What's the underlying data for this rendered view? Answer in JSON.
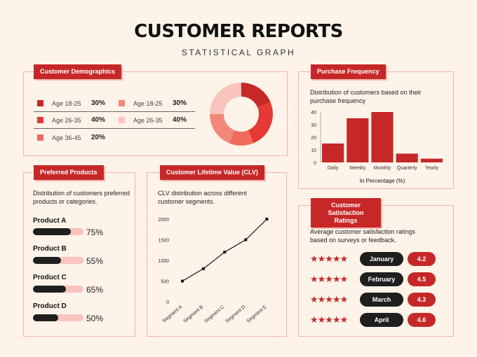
{
  "header": {
    "title": "CUSTOMER REPORTS",
    "subtitle": "STATISTICAL GRAPH"
  },
  "demographics": {
    "tag": "Customer Demographics",
    "left": [
      {
        "label": "Age 18-25",
        "pct": "30%",
        "color": "#c62828"
      },
      {
        "label": "Age 26-35",
        "pct": "40%",
        "color": "#e53935"
      },
      {
        "label": "Age 36-45",
        "pct": "20%",
        "color": "#ef6c5c"
      }
    ],
    "right": [
      {
        "label": "Age 18-25",
        "pct": "30%",
        "color": "#f2877a"
      },
      {
        "label": "Age 26-35",
        "pct": "40%",
        "color": "#f8c4bd"
      }
    ]
  },
  "purchase": {
    "tag": "Purchase Frequency",
    "desc": "Distribution of customers based on their purchase frequency",
    "xlabel": "In Percentage (%)"
  },
  "products": {
    "tag": "Preferred Products",
    "desc": "Distribution of customers preferred products or categories.",
    "items": [
      {
        "name": "Product A",
        "pct": "75%",
        "value": 0.75
      },
      {
        "name": "Product B",
        "pct": "55%",
        "value": 0.55
      },
      {
        "name": "Product C",
        "pct": "65%",
        "value": 0.65
      },
      {
        "name": "Product D",
        "pct": "50%",
        "value": 0.5
      }
    ]
  },
  "clv": {
    "tag": "Customer Lifetime Value (CLV)",
    "desc": "CLV distribution across different customer segments."
  },
  "ratings": {
    "tag": "Customer Satisfaction Ratings",
    "desc": "Average customer satisfaction ratings based on surveys or feedback.",
    "items": [
      {
        "month": "January",
        "score": "4.2",
        "stars": "★★★★★"
      },
      {
        "month": "February",
        "score": "4.5",
        "stars": "★★★★★"
      },
      {
        "month": "March",
        "score": "4.3",
        "stars": "★★★★★"
      },
      {
        "month": "April",
        "score": "4.6",
        "stars": "★★★★★"
      }
    ]
  },
  "chart_data": [
    {
      "type": "pie",
      "donut": true,
      "categories": [
        "Age 18-25",
        "Age 26-35",
        "Age 36-45",
        "Age 18-25",
        "Age 26-35"
      ],
      "values": [
        30,
        40,
        20,
        30,
        40
      ],
      "colors": [
        "#c62828",
        "#e53935",
        "#ef6c5c",
        "#f2877a",
        "#f8c4bd"
      ]
    },
    {
      "type": "bar",
      "categories": [
        "Daily",
        "Weekly",
        "Monthly",
        "Quarterly",
        "Yearly"
      ],
      "values": [
        15,
        35,
        40,
        7,
        3
      ],
      "ylim": [
        0,
        40
      ],
      "yticks": [
        0,
        10,
        20,
        30,
        40
      ],
      "xlabel": "In Percentage (%)",
      "color": "#c62828"
    },
    {
      "type": "line",
      "categories": [
        "Segment A",
        "Segment B",
        "Segment C",
        "Segment D",
        "Segment E"
      ],
      "values": [
        500,
        800,
        1200,
        1500,
        2000
      ],
      "ylim": [
        0,
        2000
      ],
      "yticks": [
        0,
        500,
        1000,
        1500,
        2000
      ],
      "color": "#111111"
    }
  ]
}
